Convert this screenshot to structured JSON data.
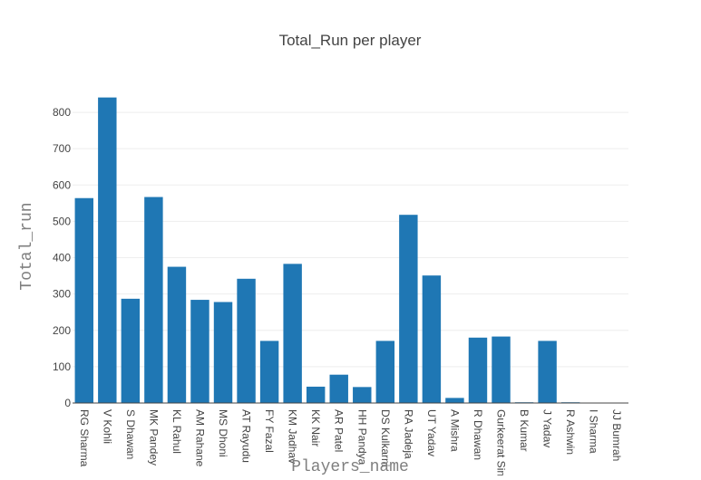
{
  "chart_data": {
    "type": "bar",
    "title": "Total_Run per player",
    "xlabel": "Players_name",
    "ylabel": "Total_run",
    "ylim": [
      0,
      860
    ],
    "yticks": [
      0,
      100,
      200,
      300,
      400,
      500,
      600,
      700,
      800
    ],
    "grid": true,
    "bar_color": "#1f77b4",
    "categories": [
      "RG Sharma",
      "V Kohli",
      "S Dhawan",
      "MK Pandey",
      "KL Rahul",
      "AM Rahane",
      "MS Dhoni",
      "AT Rayudu",
      "FY Fazal",
      "KM Jadhav",
      "KK Nair",
      "AR Patel",
      "HH Pandya",
      "DS Kulkarni",
      "RA Jadeja",
      "UT Yadav",
      "A Mishra",
      "R Dhawan",
      "Gurkeerat Singh",
      "B Kumar",
      "J Yadav",
      "R Ashwin",
      "I Sharma",
      "JJ Bumrah"
    ],
    "values": [
      564,
      841,
      287,
      567,
      375,
      284,
      278,
      342,
      171,
      383,
      45,
      78,
      44,
      171,
      518,
      351,
      14,
      180,
      183,
      2,
      171,
      2,
      1,
      1
    ]
  }
}
